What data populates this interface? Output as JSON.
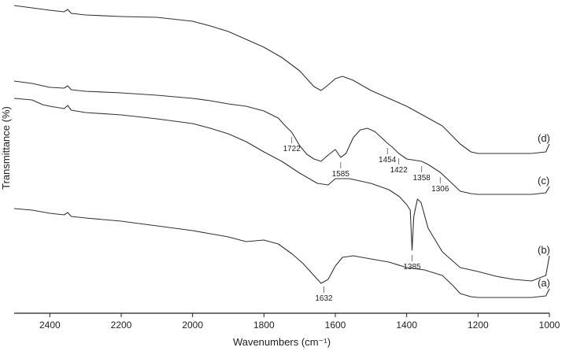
{
  "chart_data": {
    "type": "line",
    "title": "",
    "xlabel": "Wavenumbers (cm⁻¹)",
    "ylabel": "Transmittance (%)",
    "xlim": [
      2500,
      1000
    ],
    "x_reversed": true,
    "x_ticks": [
      2400,
      2200,
      2000,
      1800,
      1600,
      1400,
      1200,
      1000
    ],
    "y_ticks": [],
    "grid": false,
    "legend": "none",
    "line_color": "#333333",
    "series": [
      {
        "name": "(d)",
        "points": [
          [
            2500,
            2
          ],
          [
            2450,
            5
          ],
          [
            2400,
            8
          ],
          [
            2360,
            10
          ],
          [
            2350,
            7
          ],
          [
            2340,
            12
          ],
          [
            2300,
            14
          ],
          [
            2200,
            16
          ],
          [
            2100,
            17
          ],
          [
            2000,
            22
          ],
          [
            1950,
            28
          ],
          [
            1900,
            35
          ],
          [
            1850,
            45
          ],
          [
            1800,
            55
          ],
          [
            1750,
            68
          ],
          [
            1700,
            85
          ],
          [
            1660,
            105
          ],
          [
            1640,
            110
          ],
          [
            1620,
            103
          ],
          [
            1600,
            95
          ],
          [
            1580,
            92
          ],
          [
            1550,
            97
          ],
          [
            1500,
            110
          ],
          [
            1400,
            130
          ],
          [
            1300,
            155
          ],
          [
            1250,
            178
          ],
          [
            1220,
            188
          ],
          [
            1200,
            190
          ],
          [
            1150,
            190
          ],
          [
            1100,
            190
          ],
          [
            1050,
            190
          ],
          [
            1010,
            188
          ],
          [
            1000,
            178
          ]
        ]
      },
      {
        "name": "(c)",
        "points": [
          [
            2500,
            98
          ],
          [
            2450,
            101
          ],
          [
            2420,
            104
          ],
          [
            2400,
            106
          ],
          [
            2360,
            107
          ],
          [
            2350,
            104
          ],
          [
            2340,
            109
          ],
          [
            2300,
            111
          ],
          [
            2200,
            113
          ],
          [
            2100,
            116
          ],
          [
            2000,
            120
          ],
          [
            1950,
            123
          ],
          [
            1900,
            127
          ],
          [
            1850,
            130
          ],
          [
            1800,
            136
          ],
          [
            1760,
            145
          ],
          [
            1740,
            155
          ],
          [
            1722,
            163
          ],
          [
            1700,
            180
          ],
          [
            1680,
            191
          ],
          [
            1660,
            197
          ],
          [
            1640,
            200
          ],
          [
            1620,
            192
          ],
          [
            1600,
            185
          ],
          [
            1585,
            195
          ],
          [
            1570,
            190
          ],
          [
            1550,
            170
          ],
          [
            1530,
            160
          ],
          [
            1510,
            158
          ],
          [
            1490,
            162
          ],
          [
            1470,
            170
          ],
          [
            1454,
            177
          ],
          [
            1440,
            182
          ],
          [
            1422,
            190
          ],
          [
            1400,
            197
          ],
          [
            1358,
            200
          ],
          [
            1340,
            204
          ],
          [
            1306,
            214
          ],
          [
            1280,
            225
          ],
          [
            1250,
            238
          ],
          [
            1220,
            241
          ],
          [
            1200,
            242
          ],
          [
            1100,
            242
          ],
          [
            1050,
            242
          ],
          [
            1010,
            240
          ],
          [
            1000,
            232
          ]
        ]
      },
      {
        "name": "(b)",
        "points": [
          [
            2500,
            120
          ],
          [
            2450,
            122
          ],
          [
            2420,
            128
          ],
          [
            2400,
            130
          ],
          [
            2360,
            133
          ],
          [
            2350,
            129
          ],
          [
            2340,
            135
          ],
          [
            2300,
            138
          ],
          [
            2200,
            141
          ],
          [
            2100,
            146
          ],
          [
            2000,
            152
          ],
          [
            1950,
            158
          ],
          [
            1900,
            165
          ],
          [
            1850,
            175
          ],
          [
            1800,
            188
          ],
          [
            1750,
            200
          ],
          [
            1700,
            215
          ],
          [
            1650,
            228
          ],
          [
            1620,
            230
          ],
          [
            1600,
            222
          ],
          [
            1560,
            222
          ],
          [
            1500,
            228
          ],
          [
            1450,
            236
          ],
          [
            1420,
            245
          ],
          [
            1400,
            255
          ],
          [
            1390,
            262
          ],
          [
            1385,
            313
          ],
          [
            1380,
            270
          ],
          [
            1370,
            248
          ],
          [
            1360,
            252
          ],
          [
            1340,
            285
          ],
          [
            1300,
            315
          ],
          [
            1250,
            335
          ],
          [
            1200,
            340
          ],
          [
            1150,
            346
          ],
          [
            1100,
            350
          ],
          [
            1050,
            352
          ],
          [
            1010,
            345
          ],
          [
            1000,
            320
          ]
        ]
      },
      {
        "name": "(a)",
        "points": [
          [
            2500,
            260
          ],
          [
            2450,
            262
          ],
          [
            2400,
            266
          ],
          [
            2360,
            268
          ],
          [
            2350,
            265
          ],
          [
            2340,
            270
          ],
          [
            2300,
            272
          ],
          [
            2200,
            276
          ],
          [
            2100,
            282
          ],
          [
            2000,
            288
          ],
          [
            1950,
            292
          ],
          [
            1900,
            296
          ],
          [
            1850,
            302
          ],
          [
            1800,
            300
          ],
          [
            1760,
            305
          ],
          [
            1720,
            318
          ],
          [
            1690,
            330
          ],
          [
            1660,
            345
          ],
          [
            1640,
            355
          ],
          [
            1620,
            350
          ],
          [
            1600,
            333
          ],
          [
            1580,
            322
          ],
          [
            1550,
            320
          ],
          [
            1500,
            324
          ],
          [
            1450,
            328
          ],
          [
            1400,
            335
          ],
          [
            1350,
            338
          ],
          [
            1300,
            345
          ],
          [
            1270,
            358
          ],
          [
            1250,
            368
          ],
          [
            1220,
            372
          ],
          [
            1200,
            373
          ],
          [
            1100,
            373
          ],
          [
            1050,
            373
          ],
          [
            1010,
            371
          ],
          [
            1000,
            362
          ]
        ]
      }
    ],
    "annotations": [
      {
        "text": "1722",
        "x": 1722,
        "series": "(c)"
      },
      {
        "text": "1585",
        "x": 1585,
        "series": "(c)"
      },
      {
        "text": "1454",
        "x": 1454,
        "series": "(c)"
      },
      {
        "text": "1422",
        "x": 1422,
        "series": "(c)"
      },
      {
        "text": "1358",
        "x": 1358,
        "series": "(c)"
      },
      {
        "text": "1306",
        "x": 1306,
        "series": "(c)"
      },
      {
        "text": "1385",
        "x": 1385,
        "series": "(b)"
      },
      {
        "text": "1632",
        "x": 1632,
        "series": "(a)"
      }
    ]
  }
}
